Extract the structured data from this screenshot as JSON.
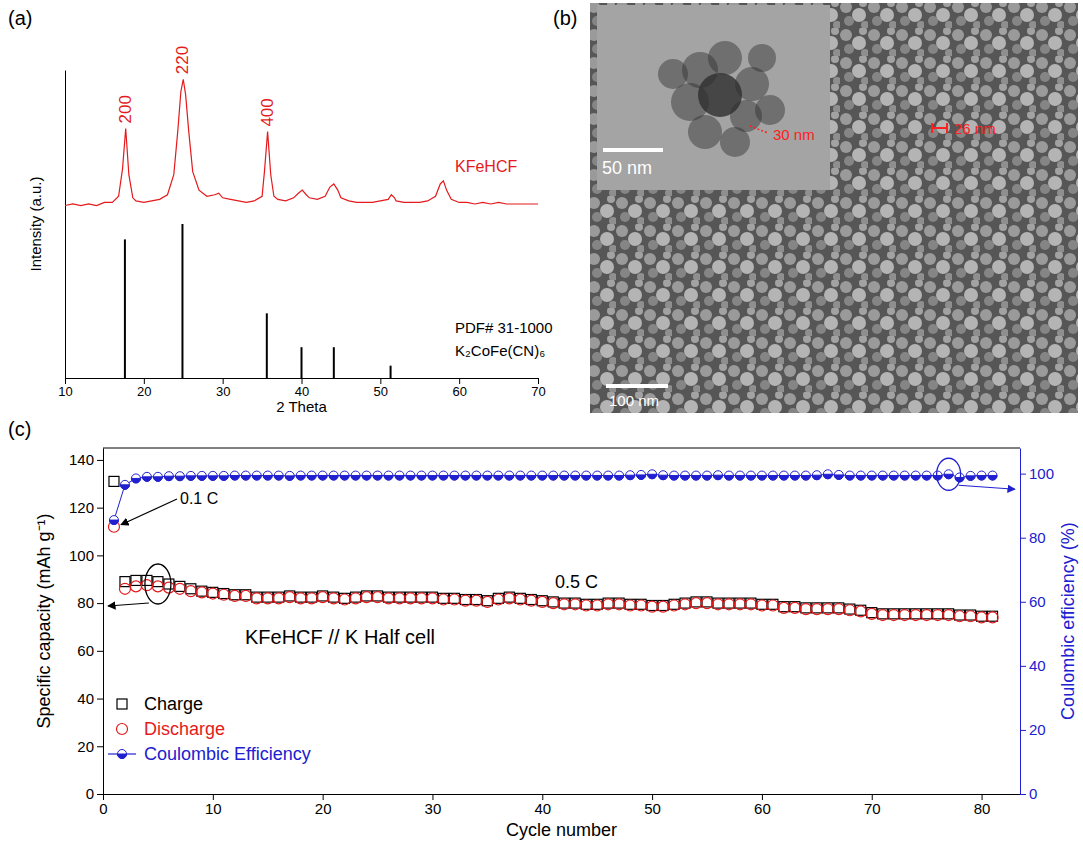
{
  "chart_data": [
    {
      "type": "line",
      "panel": "(a)",
      "x_label": "2 Theta",
      "y_label": "Intensity (a.u.)",
      "xlim": [
        10,
        70
      ],
      "xticks": [
        10,
        20,
        30,
        40,
        50,
        60,
        70
      ],
      "ylim": [
        0,
        100
      ],
      "tick_labels": "x",
      "series": [
        {
          "name": "KFeHCF",
          "type": "line",
          "color": "#e41a1c",
          "x": [
            10,
            11,
            12,
            13,
            14,
            15,
            16,
            16.8,
            17.3,
            17.7,
            18.1,
            18.6,
            19,
            20,
            21,
            22,
            23,
            23.8,
            24.3,
            24.7,
            25,
            25.3,
            25.7,
            26.2,
            27,
            28,
            29,
            29.5,
            30,
            31,
            32,
            33,
            34,
            35,
            35.3,
            35.7,
            36.1,
            36.5,
            37,
            38,
            39,
            39.6,
            40.1,
            40.6,
            41,
            42,
            43,
            43.6,
            44.1,
            44.6,
            45,
            46,
            47,
            48,
            49,
            50,
            51,
            51.4,
            51.8,
            52,
            53,
            54,
            55,
            56,
            57,
            57.6,
            58,
            58.4,
            59,
            60,
            61,
            62,
            63,
            64,
            65,
            66,
            67,
            68,
            69,
            70
          ],
          "values": [
            56,
            56.5,
            56,
            56.5,
            56,
            57,
            57,
            59,
            68,
            81,
            66,
            58.5,
            57.5,
            57,
            57.5,
            58,
            59.5,
            66,
            80,
            93,
            97,
            92,
            80,
            67,
            61,
            59,
            59.5,
            60,
            58.5,
            58,
            57.5,
            57,
            57.5,
            59,
            67,
            80,
            66,
            59,
            58,
            57.5,
            58.5,
            60,
            61,
            59.5,
            58.5,
            58,
            59,
            62,
            63,
            61,
            58.5,
            57.5,
            57,
            57,
            57,
            57.5,
            58,
            59.5,
            58.5,
            57.5,
            57,
            57,
            57,
            57.5,
            59,
            63,
            64,
            61,
            58,
            57,
            57,
            56.5,
            57,
            56.5,
            57,
            56.5,
            56.5,
            56.5,
            56.5,
            56.5
          ]
        },
        {
          "name": "K₂CoFe(CN)₆",
          "type": "bar",
          "color": "#000000",
          "x": [
            17.6,
            24.9,
            35.6,
            40.0,
            44.1,
            51.3
          ],
          "values": [
            45,
            50,
            21,
            10,
            10,
            4
          ]
        }
      ],
      "annotations": [
        "200",
        "220",
        "400",
        "PDF# 31-1000"
      ]
    },
    {
      "type": "image",
      "panel": "(b)",
      "annotations": [
        "50 nm",
        "30 nm",
        "26 nm",
        "100 nm"
      ]
    },
    {
      "type": "line",
      "panel": "(c)",
      "x_label": "Cycle number",
      "y_label": "Specific capacity (mAh g⁻¹)",
      "y2_label": "Coulombic efficiency (%)",
      "xlim": [
        0,
        83.5
      ],
      "xticks": [
        0,
        10,
        20,
        30,
        40,
        50,
        60,
        70,
        80
      ],
      "ylim": [
        0,
        145
      ],
      "yticks": [
        0,
        20,
        40,
        60,
        80,
        100,
        120,
        140
      ],
      "y2lim": [
        0,
        108
      ],
      "y2ticks": [
        0,
        20,
        40,
        60,
        80,
        100
      ],
      "legend": "lower left",
      "x": [
        1,
        2,
        3,
        4,
        5,
        6,
        7,
        8,
        9,
        10,
        11,
        12,
        13,
        14,
        15,
        16,
        17,
        18,
        19,
        20,
        21,
        22,
        23,
        24,
        25,
        26,
        27,
        28,
        29,
        30,
        31,
        32,
        33,
        34,
        35,
        36,
        37,
        38,
        39,
        40,
        41,
        42,
        43,
        44,
        45,
        46,
        47,
        48,
        49,
        50,
        51,
        52,
        53,
        54,
        55,
        56,
        57,
        58,
        59,
        60,
        61,
        62,
        63,
        64,
        65,
        66,
        67,
        68,
        69,
        70,
        71,
        72,
        73,
        74,
        75,
        76,
        77,
        78,
        79,
        80,
        81
      ],
      "series": [
        {
          "name": "Charge",
          "color": "#000000",
          "marker": "square",
          "line_style": "none",
          "values": [
            131,
            89,
            89.5,
            89.5,
            89,
            88,
            87,
            86,
            85,
            84.5,
            84,
            83.5,
            83.5,
            82.5,
            82.5,
            82.5,
            83,
            82.5,
            82.5,
            83,
            82.5,
            82,
            82.5,
            83,
            83,
            82.5,
            82.5,
            82.5,
            82.5,
            82.5,
            82,
            82,
            81.5,
            81.5,
            81,
            82,
            82.5,
            82,
            81.5,
            81,
            80.5,
            80,
            80,
            79.5,
            79.5,
            80,
            80,
            79.5,
            79.5,
            79,
            79,
            79.5,
            80,
            80.5,
            80.5,
            80,
            80,
            80,
            80,
            79.5,
            79.5,
            78.5,
            78.5,
            78,
            78,
            78,
            78,
            77.5,
            77,
            76,
            75.5,
            75.5,
            75.5,
            75.5,
            75.5,
            75.5,
            75.5,
            75,
            75,
            74.5,
            74.5
          ]
        },
        {
          "name": "Discharge",
          "color": "#e41a1c",
          "marker": "circle",
          "line_style": "none",
          "values": [
            112,
            86,
            87,
            87.5,
            87,
            86.5,
            86,
            85,
            84.5,
            84,
            83.5,
            83,
            83,
            82,
            82,
            82,
            82.5,
            82,
            82,
            82.5,
            82,
            81.5,
            82,
            82.5,
            82.5,
            82,
            82,
            82,
            82,
            82,
            81.5,
            81.5,
            81,
            81,
            80.5,
            81.5,
            82,
            81.5,
            81,
            80.5,
            80,
            79.5,
            79.5,
            79,
            79,
            79.5,
            79.5,
            79,
            79,
            78.5,
            78.5,
            79,
            79.5,
            80,
            80,
            79.5,
            79.5,
            79.5,
            79.5,
            79,
            79,
            78,
            78,
            77.5,
            77.5,
            77.5,
            77.5,
            77,
            76.5,
            75.5,
            75,
            75,
            75,
            75,
            75,
            75,
            75,
            74.5,
            74.5,
            74,
            74
          ]
        },
        {
          "name": "Coulombic Efficiency",
          "color": "#2020d0",
          "marker": "half-circle",
          "line_style": "solid",
          "axis": "y2",
          "values": [
            85.5,
            96.5,
            98.5,
            99,
            99,
            99.2,
            99.2,
            99.3,
            99.3,
            99.3,
            99.3,
            99.4,
            99.4,
            99.4,
            99.4,
            99.4,
            99.3,
            99.4,
            99.4,
            99.4,
            99.4,
            99.4,
            99.4,
            99.4,
            99.4,
            99.4,
            99.4,
            99.4,
            99.4,
            99.4,
            99.4,
            99.4,
            99.4,
            99.4,
            99.4,
            99.4,
            99.4,
            99.4,
            99.4,
            99.4,
            99.4,
            99.4,
            99.4,
            99.4,
            99.4,
            99.4,
            99.4,
            99.5,
            99.6,
            99.8,
            99.5,
            99.4,
            99.4,
            99.4,
            99.4,
            99.5,
            99.4,
            99.4,
            99.4,
            99.4,
            99.4,
            99.4,
            99.4,
            99.4,
            99.5,
            99.8,
            99.6,
            99.4,
            99.4,
            99.4,
            99.4,
            99.4,
            99.4,
            99.4,
            99.4,
            99.4,
            99.8,
            98.8,
            99.3,
            99.4,
            99.4
          ]
        }
      ],
      "annotations": [
        "0.1 C",
        "0.5 C",
        "KFeHCF // K Half cell"
      ]
    }
  ]
}
